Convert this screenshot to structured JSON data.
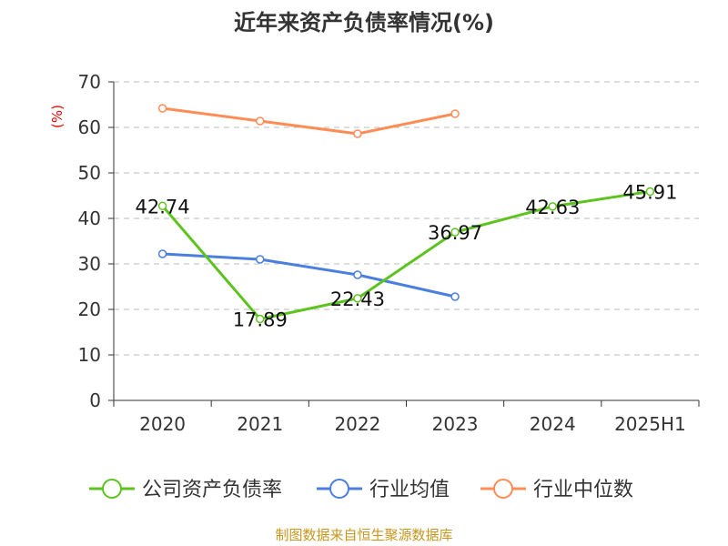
{
  "chart_data": {
    "type": "line",
    "title": "近年来资产负债率情况(%)",
    "ylabel": "(%)",
    "xlabel": "",
    "categories": [
      "2020",
      "2021",
      "2022",
      "2023",
      "2024",
      "2025H1"
    ],
    "ylim": [
      0,
      70
    ],
    "yticks": [
      0,
      10,
      20,
      30,
      40,
      50,
      60,
      70
    ],
    "grid": true,
    "legend_position": "bottom",
    "series": [
      {
        "name": "公司资产负债率",
        "color": "#5cc31f",
        "values": [
          42.74,
          17.89,
          22.43,
          36.97,
          42.63,
          45.91
        ],
        "labels": [
          "42.74",
          "17.89",
          "22.43",
          "36.97",
          "42.63",
          "45.91"
        ]
      },
      {
        "name": "行业均值",
        "color": "#4a7fe0",
        "values": [
          32.2,
          31.0,
          27.6,
          22.8,
          null,
          null
        ]
      },
      {
        "name": "行业中位数",
        "color": "#ff8c55",
        "values": [
          64.2,
          61.4,
          58.6,
          63.0,
          null,
          null
        ]
      }
    ],
    "source": "制图数据来自恒生聚源数据库"
  }
}
